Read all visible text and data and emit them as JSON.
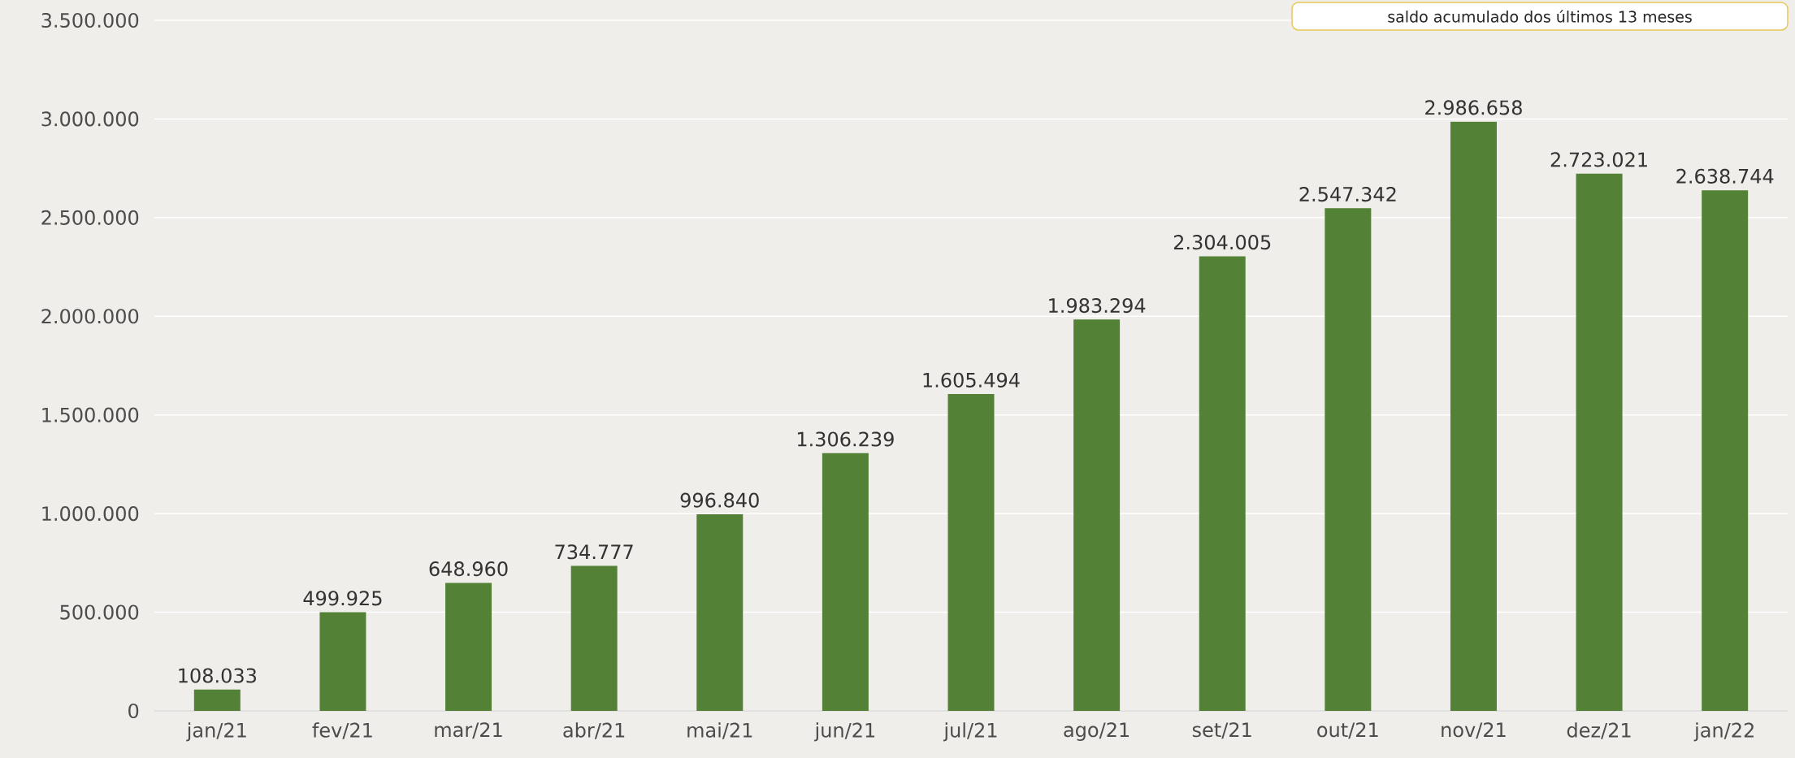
{
  "chart_data": {
    "type": "bar",
    "categories": [
      "jan/21",
      "fev/21",
      "mar/21",
      "abr/21",
      "mai/21",
      "jun/21",
      "jul/21",
      "ago/21",
      "set/21",
      "out/21",
      "nov/21",
      "dez/21",
      "jan/22"
    ],
    "values": [
      108033,
      499925,
      648960,
      734777,
      996840,
      1306239,
      1605494,
      1983294,
      2304005,
      2547342,
      2986658,
      2723021,
      2638744
    ],
    "value_labels": [
      "108.033",
      "499.925",
      "648.960",
      "734.777",
      "996.840",
      "1.306.239",
      "1.605.494",
      "1.983.294",
      "2.304.005",
      "2.547.342",
      "2.986.658",
      "2.723.021",
      "2.638.744"
    ],
    "color": "#538135",
    "ylim": [
      0,
      3500000
    ],
    "yticks": [
      0,
      {
        "value": 500000,
        "label": "500.000"
      },
      {
        "value": 1000000,
        "label": "1.000.000"
      },
      {
        "value": 1500000,
        "label": "1.500.000"
      },
      {
        "value": 2000000,
        "label": "2.000.000"
      },
      {
        "value": 2500000,
        "label": "2.500.000"
      },
      {
        "value": 3000000,
        "label": "3.000.000"
      },
      {
        "value": 3500000,
        "label": "3.500.000"
      }
    ],
    "grid": "y",
    "annotations": [
      "saldo acumulado dos últimos 13 meses"
    ]
  }
}
